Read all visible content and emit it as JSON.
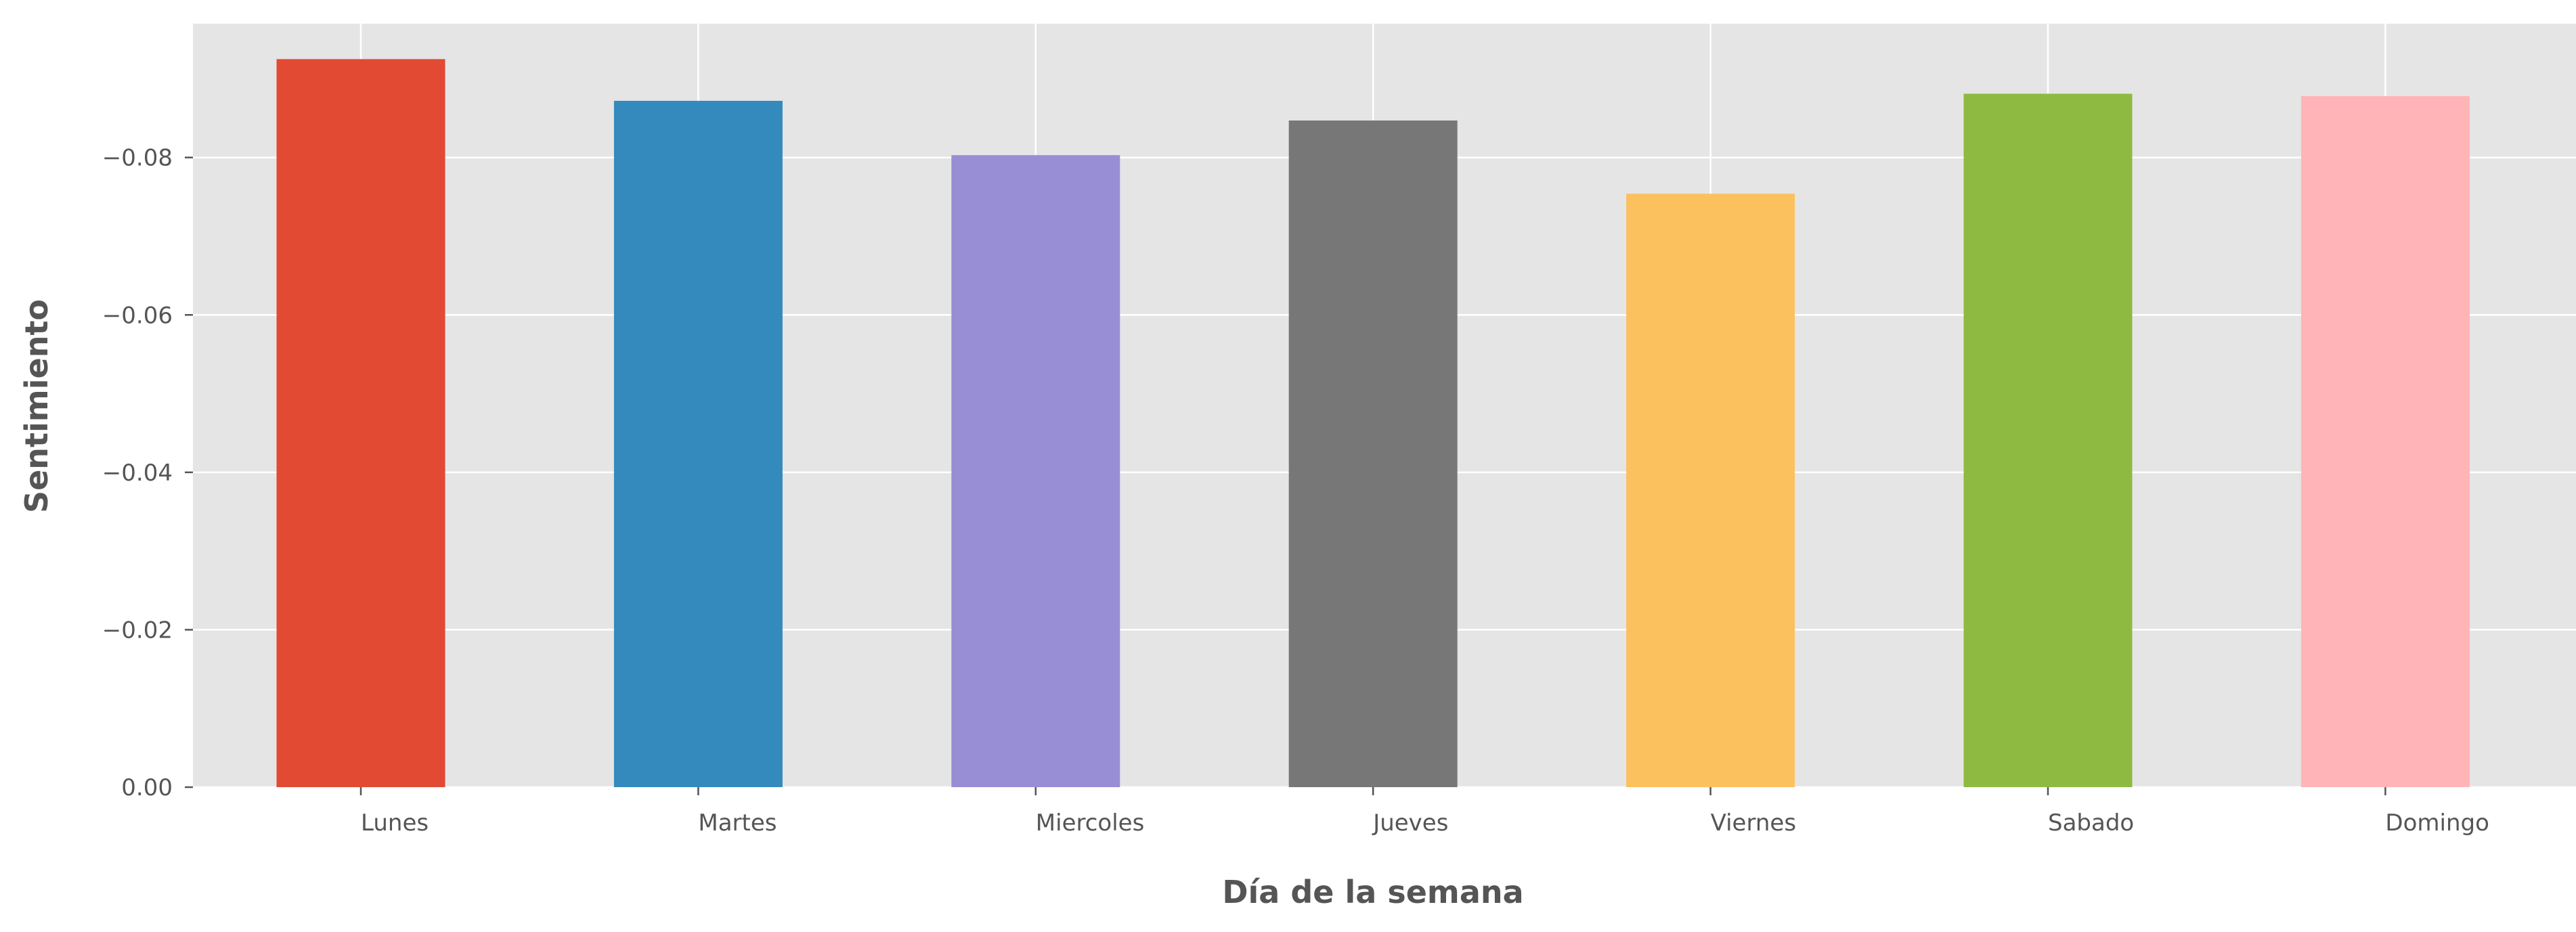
{
  "chart_data": {
    "type": "bar",
    "title": "",
    "xlabel": "Día de la semana",
    "ylabel": "Sentimiento",
    "categories": [
      "Lunes",
      "Martes",
      "Miercoles",
      "Jueves",
      "Viernes",
      "Sabado",
      "Domingo"
    ],
    "values": [
      -0.0925,
      -0.0872,
      -0.0803,
      -0.0847,
      -0.0754,
      -0.0881,
      -0.0878
    ],
    "colors": [
      "#E24A33",
      "#348ABD",
      "#988ED5",
      "#777777",
      "#FBC15E",
      "#8EBA42",
      "#FFB5B8"
    ],
    "ylim": [
      0,
      -0.097
    ],
    "y_inverted": true,
    "y_ticks": [
      0,
      -0.02,
      -0.04,
      -0.06,
      -0.08
    ],
    "y_tick_labels": [
      "0.00",
      "−0.02",
      "−0.04",
      "−0.06",
      "−0.08"
    ],
    "grid": true,
    "style": "ggplot",
    "background_color": "#E5E5E5",
    "grid_color": "#FFFFFF",
    "legend": "none"
  }
}
